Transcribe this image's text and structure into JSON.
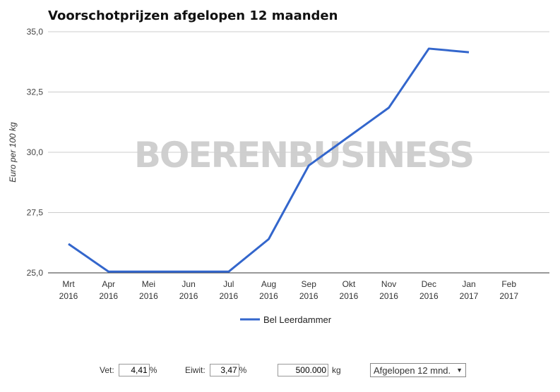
{
  "chart_data": {
    "type": "line",
    "title": "Voorschotprijzen afgelopen 12 maanden",
    "xlabel": "",
    "ylabel": "Euro per 100 kg",
    "ylim": [
      25,
      35
    ],
    "yticks": [
      "25,0",
      "27,5",
      "30,0",
      "32,5",
      "35,0"
    ],
    "ytick_values": [
      25,
      27.5,
      30,
      32.5,
      35
    ],
    "categories": [
      [
        "Mrt",
        "2016"
      ],
      [
        "Apr",
        "2016"
      ],
      [
        "Mei",
        "2016"
      ],
      [
        "Jun",
        "2016"
      ],
      [
        "Jul",
        "2016"
      ],
      [
        "Aug",
        "2016"
      ],
      [
        "Sep",
        "2016"
      ],
      [
        "Okt",
        "2016"
      ],
      [
        "Nov",
        "2016"
      ],
      [
        "Dec",
        "2016"
      ],
      [
        "Jan",
        "2017"
      ],
      [
        "Feb",
        "2017"
      ]
    ],
    "series": [
      {
        "name": "Bel Leerdammer",
        "color": "#3366cc",
        "values": [
          26.2,
          25.05,
          25.05,
          25.05,
          25.05,
          26.4,
          29.45,
          30.65,
          31.85,
          34.3,
          34.15,
          null
        ]
      }
    ],
    "grid": true,
    "legend": "bottom",
    "watermark": "BOERENBUSINESS"
  },
  "controls": {
    "vet_label": "Vet:",
    "vet_value": "4,41",
    "vet_unit": "%",
    "eiwit_label": "Eiwit:",
    "eiwit_value": "3,47",
    "eiwit_unit": "%",
    "volume_value": "500.000",
    "volume_unit": "kg",
    "period_selected": "Afgelopen 12 mnd.",
    "period_arrow": "▼"
  }
}
